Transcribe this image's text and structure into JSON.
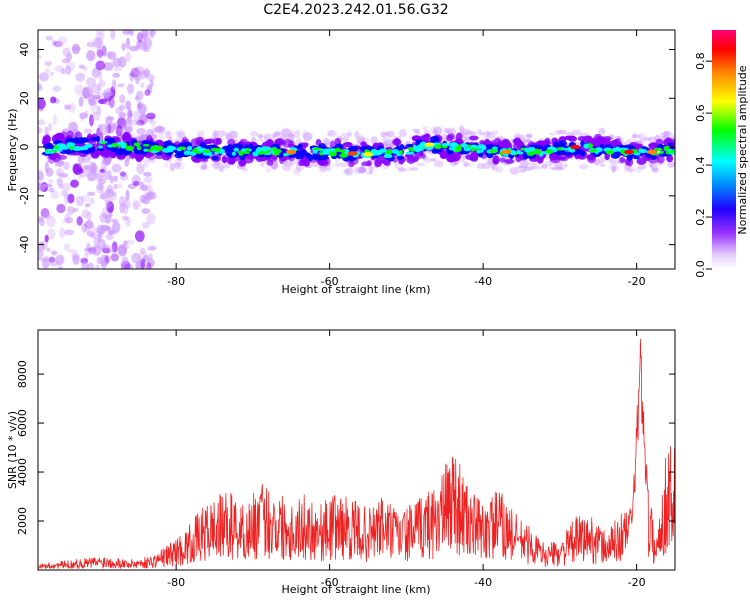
{
  "title": "C2E4.2023.242.01.56.G32",
  "chart_data": [
    {
      "type": "heatmap",
      "xlabel": "Height of straight line (km)",
      "ylabel": "Frequency (Hz)",
      "xlim": [
        -98,
        -15
      ],
      "ylim": [
        -50,
        48
      ],
      "x_ticks": [
        -80,
        -60,
        -40,
        -20
      ],
      "y_ticks": [
        -40,
        -20,
        0,
        20,
        40
      ],
      "colorbar": {
        "label": "Normalized spectral amplitude",
        "range": [
          0,
          0.92
        ],
        "ticks": [
          0.0,
          0.2,
          0.4,
          0.6,
          0.8
        ],
        "colors": [
          "#ffffff",
          "#cc99ff",
          "#8800ff",
          "#0000ff",
          "#00ffff",
          "#00ff00",
          "#ffff00",
          "#ff8800",
          "#ff0000",
          "#ff0088"
        ]
      },
      "ridge": [
        {
          "x": -96,
          "f": 0
        },
        {
          "x": -90,
          "f": 1
        },
        {
          "x": -85,
          "f": 0
        },
        {
          "x": -80,
          "f": -1
        },
        {
          "x": -75,
          "f": -2
        },
        {
          "x": -70,
          "f": -2
        },
        {
          "x": -65,
          "f": -2
        },
        {
          "x": -60,
          "f": -2
        },
        {
          "x": -55,
          "f": -3
        },
        {
          "x": -50,
          "f": -2
        },
        {
          "x": -47,
          "f": 1
        },
        {
          "x": -44,
          "f": 0
        },
        {
          "x": -40,
          "f": -1
        },
        {
          "x": -37,
          "f": -2
        },
        {
          "x": -33,
          "f": -2
        },
        {
          "x": -30,
          "f": -1
        },
        {
          "x": -28,
          "f": 0
        },
        {
          "x": -24,
          "f": -1
        },
        {
          "x": -21,
          "f": -2
        },
        {
          "x": -18,
          "f": -2
        },
        {
          "x": -15,
          "f": -1
        }
      ]
    },
    {
      "type": "line",
      "xlabel": "Height of straight line (km)",
      "ylabel": "SNR (10 * v/v)",
      "xlim": [
        -98,
        -15
      ],
      "ylim": [
        0,
        9800
      ],
      "x_ticks": [
        -80,
        -60,
        -40,
        -20
      ],
      "y_ticks": [
        2000,
        4000,
        6000,
        8000
      ],
      "series": [
        {
          "color": "#ee2222",
          "x": [
            -98,
            -95,
            -92,
            -89,
            -86,
            -83,
            -81,
            -79,
            -77,
            -75,
            -73,
            -71,
            -69,
            -67,
            -65,
            -63,
            -61,
            -59,
            -57,
            -55,
            -53,
            -51,
            -49,
            -47,
            -45,
            -44,
            -42,
            -40,
            -38,
            -36,
            -34,
            -32,
            -30,
            -28,
            -26,
            -24,
            -22,
            -20.5,
            -19.5,
            -18.5,
            -17.5,
            -16.5,
            -15.5,
            -15
          ],
          "y": [
            200,
            300,
            400,
            500,
            350,
            500,
            900,
            1300,
            2000,
            2500,
            2700,
            2200,
            3000,
            2800,
            2400,
            2600,
            2300,
            2700,
            2400,
            2100,
            2600,
            2000,
            2300,
            2800,
            3500,
            4500,
            2800,
            2300,
            2800,
            2000,
            1500,
            900,
            1000,
            1800,
            1900,
            1300,
            2000,
            2600,
            9400,
            3000,
            1000,
            3500,
            5000,
            4200
          ]
        }
      ]
    }
  ]
}
